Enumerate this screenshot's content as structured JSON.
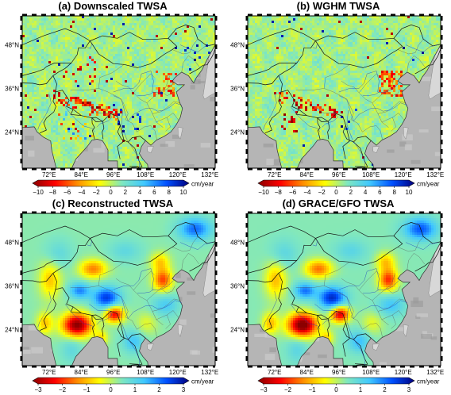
{
  "panels": [
    {
      "id": "a",
      "title": "(a) Downscaled TWSA",
      "lat_ticks": [
        "48°N",
        "36°N",
        "24°N"
      ],
      "lon_ticks": [
        "72°E",
        "84°E",
        "96°E",
        "108°E",
        "120°E",
        "132°E"
      ],
      "colorbar": {
        "ticks": [
          "−10",
          "−8",
          "−6",
          "−4",
          "−2",
          "0",
          "2",
          "4",
          "6",
          "8",
          "10"
        ],
        "unit": "cm/year"
      },
      "style": "pixel-strong"
    },
    {
      "id": "b",
      "title": "(b) WGHM TWSA",
      "lat_ticks": [
        "48°N",
        "36°N",
        "24°N"
      ],
      "lon_ticks": [
        "72°E",
        "84°E",
        "96°E",
        "108°E",
        "120°E",
        "132°E"
      ],
      "colorbar": {
        "ticks": [
          "−10",
          "−8",
          "−6",
          "−4",
          "−2",
          "0",
          "2",
          "4",
          "6",
          "8",
          "10"
        ],
        "unit": "cm/year"
      },
      "style": "pixel-mild"
    },
    {
      "id": "c",
      "title": "(c) Reconstructed TWSA",
      "lat_ticks": [
        "48°N",
        "36°N",
        "24°N"
      ],
      "lon_ticks": [
        "72°E",
        "84°E",
        "96°E",
        "108°E",
        "120°E",
        "132°E"
      ],
      "colorbar": {
        "ticks": [
          "−3",
          "−2",
          "−1",
          "0",
          "1",
          "2",
          "3"
        ],
        "unit": "cm/year"
      },
      "style": "smooth"
    },
    {
      "id": "d",
      "title": "(d) GRACE/GFO TWSA",
      "lat_ticks": [
        "48°N",
        "36°N",
        "24°N"
      ],
      "lon_ticks": [
        "72°E",
        "84°E",
        "96°E",
        "108°E",
        "120°E",
        "132°E"
      ],
      "colorbar": {
        "ticks": [
          "−3",
          "−2",
          "−1",
          "0",
          "1",
          "2",
          "3"
        ],
        "unit": "cm/year"
      },
      "style": "smooth"
    }
  ],
  "colors": {
    "ocean": "#b5b5b5",
    "land_base": "#8fe0b4",
    "border": "#333333",
    "colormap": [
      "#8b0000",
      "#ff0000",
      "#ff8c00",
      "#ffff00",
      "#7fe7c0",
      "#40c8ff",
      "#0050ff",
      "#00007f"
    ]
  }
}
